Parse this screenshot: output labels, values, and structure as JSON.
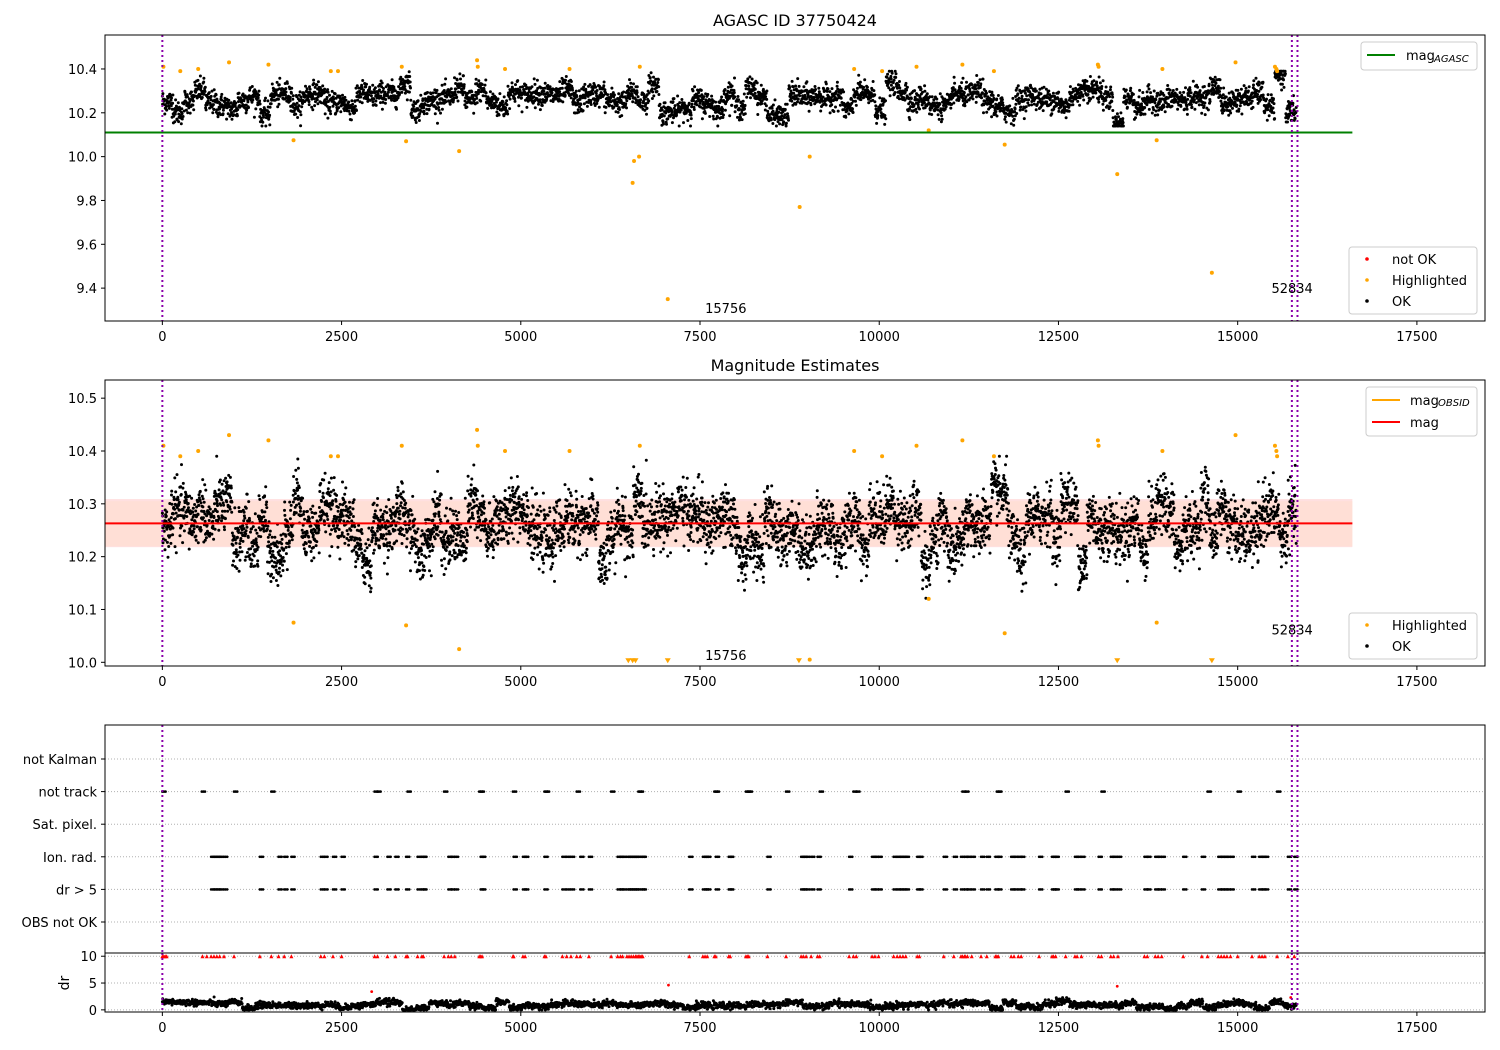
{
  "figure": {
    "title": "AGASC ID 37750424"
  },
  "chart_data": [
    {
      "type": "scatter",
      "title": "AGASC ID 37750424",
      "xlabel": "",
      "ylabel": "",
      "xlim": [
        -800,
        18450
      ],
      "ylim": [
        9.25,
        10.555
      ],
      "xticks": [
        0,
        2500,
        5000,
        7500,
        10000,
        12500,
        15000,
        17500
      ],
      "yticks": [
        9.4,
        9.6,
        9.8,
        10.0,
        10.2,
        10.4
      ],
      "grid": false,
      "vlines": [
        0,
        15756,
        15834
      ],
      "vline_labels": [
        {
          "x": 7860,
          "y": 9.31,
          "text": "15756"
        },
        {
          "x": 15760,
          "y": 9.4,
          "text": "52834"
        }
      ],
      "reference_lines": [
        {
          "name": "mag_AGASC",
          "value": 10.11,
          "x_range": [
            -800,
            16600
          ],
          "color": "#008000"
        }
      ],
      "series": [
        {
          "name": "OK",
          "color": "#000000",
          "n_points": 4200,
          "x_range": [
            0,
            15820
          ],
          "y_center": 10.26,
          "y_spread": 0.045
        },
        {
          "name": "Highlighted",
          "color": "#ffa500",
          "points": [
            [
              15,
              10.41
            ],
            [
              250,
              10.39
            ],
            [
              500,
              10.4
            ],
            [
              930,
              10.43
            ],
            [
              1480,
              10.42
            ],
            [
              1830,
              10.075
            ],
            [
              2350,
              10.39
            ],
            [
              2450,
              10.39
            ],
            [
              3340,
              10.41
            ],
            [
              3400,
              10.07
            ],
            [
              4140,
              10.025
            ],
            [
              4390,
              10.44
            ],
            [
              4400,
              10.41
            ],
            [
              4780,
              10.4
            ],
            [
              5680,
              10.4
            ],
            [
              6560,
              9.88
            ],
            [
              6580,
              9.98
            ],
            [
              6650,
              10.0
            ],
            [
              6660,
              10.41
            ],
            [
              7050,
              9.35
            ],
            [
              8890,
              9.77
            ],
            [
              9030,
              10.0
            ],
            [
              9650,
              10.4
            ],
            [
              10040,
              10.39
            ],
            [
              10520,
              10.41
            ],
            [
              10690,
              10.12
            ],
            [
              11160,
              10.42
            ],
            [
              11750,
              10.055
            ],
            [
              11600,
              10.39
            ],
            [
              13050,
              10.42
            ],
            [
              13060,
              10.41
            ],
            [
              13320,
              9.92
            ],
            [
              13870,
              10.075
            ],
            [
              13950,
              10.4
            ],
            [
              14640,
              9.47
            ],
            [
              14970,
              10.43
            ],
            [
              15520,
              10.41
            ],
            [
              15540,
              10.4
            ],
            [
              15550,
              10.39
            ]
          ]
        },
        {
          "name": "not OK",
          "color": "#ff0000",
          "points": []
        }
      ],
      "legends": [
        {
          "placement": "top-right",
          "entries": [
            {
              "label_main": "mag",
              "label_sub": "AGASC",
              "color": "#008000",
              "kind": "line"
            }
          ]
        },
        {
          "placement": "lower-right",
          "entries": [
            {
              "label": "not OK",
              "color": "#ff0000",
              "kind": "dot"
            },
            {
              "label": "Highlighted",
              "color": "#ffa500",
              "kind": "dot"
            },
            {
              "label": "OK",
              "color": "#000000",
              "kind": "dot"
            }
          ]
        }
      ]
    },
    {
      "type": "scatter",
      "title": "Magnitude Estimates",
      "xlabel": "",
      "ylabel": "",
      "xlim": [
        -800,
        18450
      ],
      "ylim": [
        9.993,
        10.5344
      ],
      "xticks": [
        0,
        2500,
        5000,
        7500,
        10000,
        12500,
        15000,
        17500
      ],
      "yticks": [
        10.0,
        10.1,
        10.2,
        10.3,
        10.4,
        10.5
      ],
      "grid": false,
      "vlines": [
        0,
        15756,
        15834
      ],
      "vline_labels": [
        {
          "x": 7860,
          "y": 10.014,
          "text": "15756"
        },
        {
          "x": 15760,
          "y": 10.062,
          "text": "52834"
        }
      ],
      "bands": [
        {
          "y_range": [
            10.218,
            10.309
          ],
          "x_range": [
            -800,
            16600
          ],
          "color": "#ffcccc"
        },
        {
          "y_range": [
            10.22,
            10.305
          ],
          "x_range": [
            -800,
            16600
          ],
          "color": "#ffddcc"
        }
      ],
      "reference_lines": [
        {
          "name": "mag",
          "value": 10.263,
          "x_range": [
            -800,
            16600
          ],
          "color": "#ff0000"
        }
      ],
      "series": [
        {
          "name": "OK",
          "color": "#000000",
          "n_points": 5200,
          "x_range": [
            0,
            15820
          ],
          "y_center": 10.26,
          "y_spread": 0.045
        },
        {
          "name": "Highlighted",
          "color": "#ffa500",
          "points": [
            [
              15,
              10.41
            ],
            [
              250,
              10.39
            ],
            [
              500,
              10.4
            ],
            [
              930,
              10.43
            ],
            [
              1480,
              10.42
            ],
            [
              1830,
              10.075
            ],
            [
              2350,
              10.39
            ],
            [
              2450,
              10.39
            ],
            [
              3340,
              10.41
            ],
            [
              3400,
              10.07
            ],
            [
              4140,
              10.025
            ],
            [
              4390,
              10.44
            ],
            [
              4400,
              10.41
            ],
            [
              4780,
              10.4
            ],
            [
              5680,
              10.4
            ],
            [
              6660,
              10.41
            ],
            [
              9030,
              10.005
            ],
            [
              9650,
              10.4
            ],
            [
              10040,
              10.39
            ],
            [
              10520,
              10.41
            ],
            [
              10690,
              10.12
            ],
            [
              11160,
              10.42
            ],
            [
              11750,
              10.055
            ],
            [
              11600,
              10.39
            ],
            [
              13050,
              10.42
            ],
            [
              13060,
              10.41
            ],
            [
              13870,
              10.075
            ],
            [
              13950,
              10.4
            ],
            [
              14970,
              10.43
            ],
            [
              15520,
              10.41
            ],
            [
              15540,
              10.4
            ],
            [
              15550,
              10.39
            ]
          ]
        },
        {
          "name": "Highlighted (below axis)",
          "color": "#ffa500",
          "marker": "triangle-down",
          "points": [
            [
              6500,
              10.0
            ],
            [
              6560,
              10.0
            ],
            [
              6600,
              10.0
            ],
            [
              7050,
              10.0
            ],
            [
              8880,
              10.0
            ],
            [
              13320,
              10.0
            ],
            [
              14640,
              10.0
            ]
          ]
        }
      ],
      "legends": [
        {
          "placement": "top-right",
          "entries": [
            {
              "label_main": "mag",
              "label_sub": "OBSID",
              "color": "#ffa500",
              "kind": "line"
            },
            {
              "label_main": "mag",
              "label_sub": "",
              "color": "#ff0000",
              "kind": "line"
            }
          ]
        },
        {
          "placement": "lower-right",
          "entries": [
            {
              "label": "Highlighted",
              "color": "#ffa500",
              "kind": "dot"
            },
            {
              "label": "OK",
              "color": "#000000",
              "kind": "dot"
            }
          ]
        }
      ]
    },
    {
      "type": "scatter",
      "title": "",
      "xlabel": "",
      "ylabel": "",
      "xlim": [
        -800,
        18450
      ],
      "categories": [
        "not Kalman",
        "not track",
        "Sat. pixel.",
        "Ion. rad.",
        "dr > 5",
        "OBS not OK"
      ],
      "grid": true,
      "vlines": [
        0,
        15756,
        15834
      ],
      "flag_x": {
        "not Kalman": [],
        "not track": [
          0,
          550,
          1000,
          1520,
          2960,
          3000,
          3420,
          3930,
          4420,
          4440,
          4890,
          5330,
          5350,
          5780,
          6260,
          6640,
          6660,
          7700,
          7720,
          8140,
          8160,
          8180,
          8700,
          9170,
          9640,
          9680,
          11160,
          11200,
          11640,
          11660,
          12600,
          13100,
          14580,
          15000,
          15550
        ],
        "Sat. pixel.": [],
        "Ion. rad.": [
          680,
          720,
          760,
          800,
          860,
          1360,
          1620,
          1700,
          1800,
          2210,
          2260,
          2380,
          2500,
          2960,
          3140,
          3250,
          3400,
          3560,
          3620,
          3640,
          3990,
          4030,
          4080,
          4440,
          4460,
          4900,
          5030,
          5060,
          5330,
          5580,
          5640,
          5700,
          5830,
          5950,
          6350,
          6390,
          6420,
          6480,
          6510,
          6540,
          6570,
          6600,
          6620,
          6680,
          6700,
          7350,
          7540,
          7570,
          7600,
          7720,
          7900,
          7920,
          8440,
          8910,
          8940,
          8980,
          9050,
          9140,
          9580,
          9900,
          9940,
          9990,
          10200,
          10250,
          10290,
          10330,
          10370,
          10530,
          10560,
          10900,
          11040,
          11140,
          11190,
          11230,
          11290,
          11420,
          11500,
          11620,
          11660,
          11840,
          11880,
          11940,
          11980,
          12230,
          12410,
          12430,
          12460,
          12730,
          12760,
          12820,
          13060,
          13230,
          13270,
          13330,
          13700,
          13740,
          13850,
          13890,
          13940,
          14240,
          14500,
          14730,
          14770,
          14810,
          14850,
          14900,
          15200,
          15300,
          15340,
          15380,
          15700,
          15790
        ],
        "dr > 5": [
          680,
          720,
          760,
          800,
          860,
          1360,
          1620,
          1700,
          1800,
          2210,
          2260,
          2380,
          2500,
          2960,
          3140,
          3250,
          3400,
          3560,
          3620,
          3640,
          3990,
          4030,
          4080,
          4440,
          4460,
          4900,
          5030,
          5060,
          5330,
          5580,
          5640,
          5700,
          5830,
          5950,
          6350,
          6390,
          6420,
          6480,
          6510,
          6540,
          6570,
          6600,
          6620,
          6680,
          6700,
          7350,
          7540,
          7570,
          7600,
          7720,
          7900,
          7920,
          8440,
          8910,
          8940,
          8980,
          9050,
          9140,
          9580,
          9900,
          9940,
          9990,
          10200,
          10250,
          10290,
          10330,
          10370,
          10530,
          10560,
          10900,
          11040,
          11140,
          11190,
          11230,
          11290,
          11420,
          11500,
          11620,
          11660,
          11840,
          11880,
          11940,
          11980,
          12230,
          12410,
          12430,
          12460,
          12730,
          12760,
          12820,
          13060,
          13230,
          13270,
          13330,
          13700,
          13740,
          13850,
          13890,
          13940,
          14240,
          14500,
          14730,
          14770,
          14810,
          14850,
          14900,
          15200,
          15300,
          15340,
          15380,
          15700,
          15790
        ],
        "OBS not OK": []
      }
    },
    {
      "type": "scatter",
      "title": "",
      "xlabel": "",
      "ylabel": "dr",
      "xlim": [
        -800,
        18450
      ],
      "ylim": [
        -0.4,
        10.6
      ],
      "yticks": [
        0,
        5,
        10
      ],
      "xticks": [
        0,
        2500,
        5000,
        7500,
        10000,
        12500,
        15000,
        17500
      ],
      "grid": true,
      "vlines": [
        0,
        15756,
        15834
      ],
      "series": [
        {
          "name": "OK",
          "color": "#000000",
          "n_points": 3400,
          "x_range": [
            0,
            15820
          ],
          "y_center": 0.9,
          "y_spread": 0.5
        },
        {
          "name": "clipped (>10)",
          "color": "#ff0000",
          "marker": "triangle-up",
          "y_value": 10,
          "x_values": [
            0,
            20,
            40,
            60,
            560,
            620,
            680,
            720,
            760,
            800,
            860,
            1000,
            1360,
            1520,
            1620,
            1700,
            1800,
            2210,
            2260,
            2380,
            2500,
            2960,
            3000,
            3140,
            3250,
            3400,
            3420,
            3560,
            3620,
            3640,
            3930,
            3990,
            4030,
            4080,
            4420,
            4440,
            4460,
            4890,
            4900,
            5030,
            5060,
            5330,
            5350,
            5580,
            5640,
            5700,
            5780,
            5830,
            5950,
            6260,
            6350,
            6390,
            6420,
            6480,
            6510,
            6540,
            6570,
            6600,
            6620,
            6640,
            6660,
            6680,
            6700,
            7350,
            7540,
            7570,
            7600,
            7700,
            7720,
            7900,
            7920,
            8140,
            8160,
            8180,
            8440,
            8700,
            8910,
            8940,
            8980,
            9050,
            9140,
            9170,
            9580,
            9640,
            9680,
            9900,
            9940,
            9990,
            10200,
            10250,
            10290,
            10330,
            10370,
            10530,
            10560,
            10900,
            11040,
            11140,
            11160,
            11190,
            11200,
            11230,
            11290,
            11420,
            11500,
            11620,
            11640,
            11660,
            11840,
            11880,
            11940,
            11980,
            12230,
            12410,
            12430,
            12460,
            12600,
            12730,
            12760,
            12820,
            13060,
            13100,
            13230,
            13270,
            13330,
            13700,
            13740,
            13850,
            13890,
            13940,
            14240,
            14500,
            14580,
            14730,
            14770,
            14810,
            14850,
            14900,
            15000,
            15200,
            15300,
            15340,
            15380,
            15550,
            15700,
            15790
          ]
        },
        {
          "name": "outliers",
          "color": "#ff0000",
          "points": [
            [
              2920,
              3.4
            ],
            [
              7060,
              4.6
            ],
            [
              13320,
              4.4
            ],
            [
              15740,
              2.3
            ]
          ]
        }
      ]
    }
  ]
}
